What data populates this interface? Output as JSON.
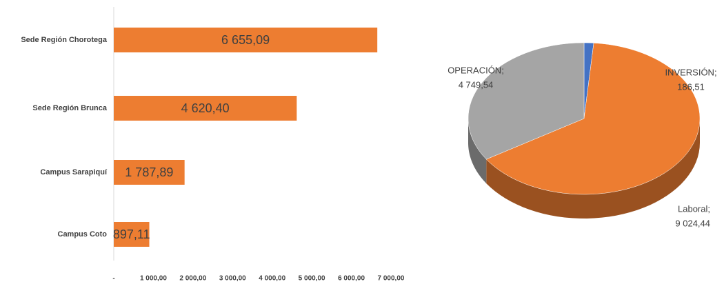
{
  "chart_data": [
    {
      "type": "hbar",
      "categories": [
        "Sede Región Chorotega",
        "Sede Región Brunca",
        "Campus Sarapiquí",
        "Campus Coto"
      ],
      "values": [
        6655.09,
        4620.4,
        1787.89,
        897.11
      ],
      "value_labels": [
        "6 655,09",
        "4 620,40",
        "1 787,89",
        "897,11"
      ],
      "color": "#ed7d31",
      "xlim": [
        0,
        7000
      ],
      "xticks": [
        {
          "value": 0,
          "label": "-"
        },
        {
          "value": 1000,
          "label": "1 000,00"
        },
        {
          "value": 2000,
          "label": "2 000,00"
        },
        {
          "value": 3000,
          "label": "3 000,00"
        },
        {
          "value": 4000,
          "label": "4 000,00"
        },
        {
          "value": 5000,
          "label": "5 000,00"
        },
        {
          "value": 6000,
          "label": "6 000,00"
        },
        {
          "value": 7000,
          "label": "7 000,00"
        }
      ]
    },
    {
      "type": "pie3d",
      "categories": [
        "INVERSIÓN;",
        "Laboral;",
        "OPERACIÓN;"
      ],
      "values": [
        186.51,
        9024.44,
        4749.54
      ],
      "value_labels": [
        "186,51",
        "9 024,44",
        "4 749,54"
      ],
      "colors": [
        "#4472c4",
        "#ed7d31",
        "#a5a5a5"
      ]
    }
  ]
}
